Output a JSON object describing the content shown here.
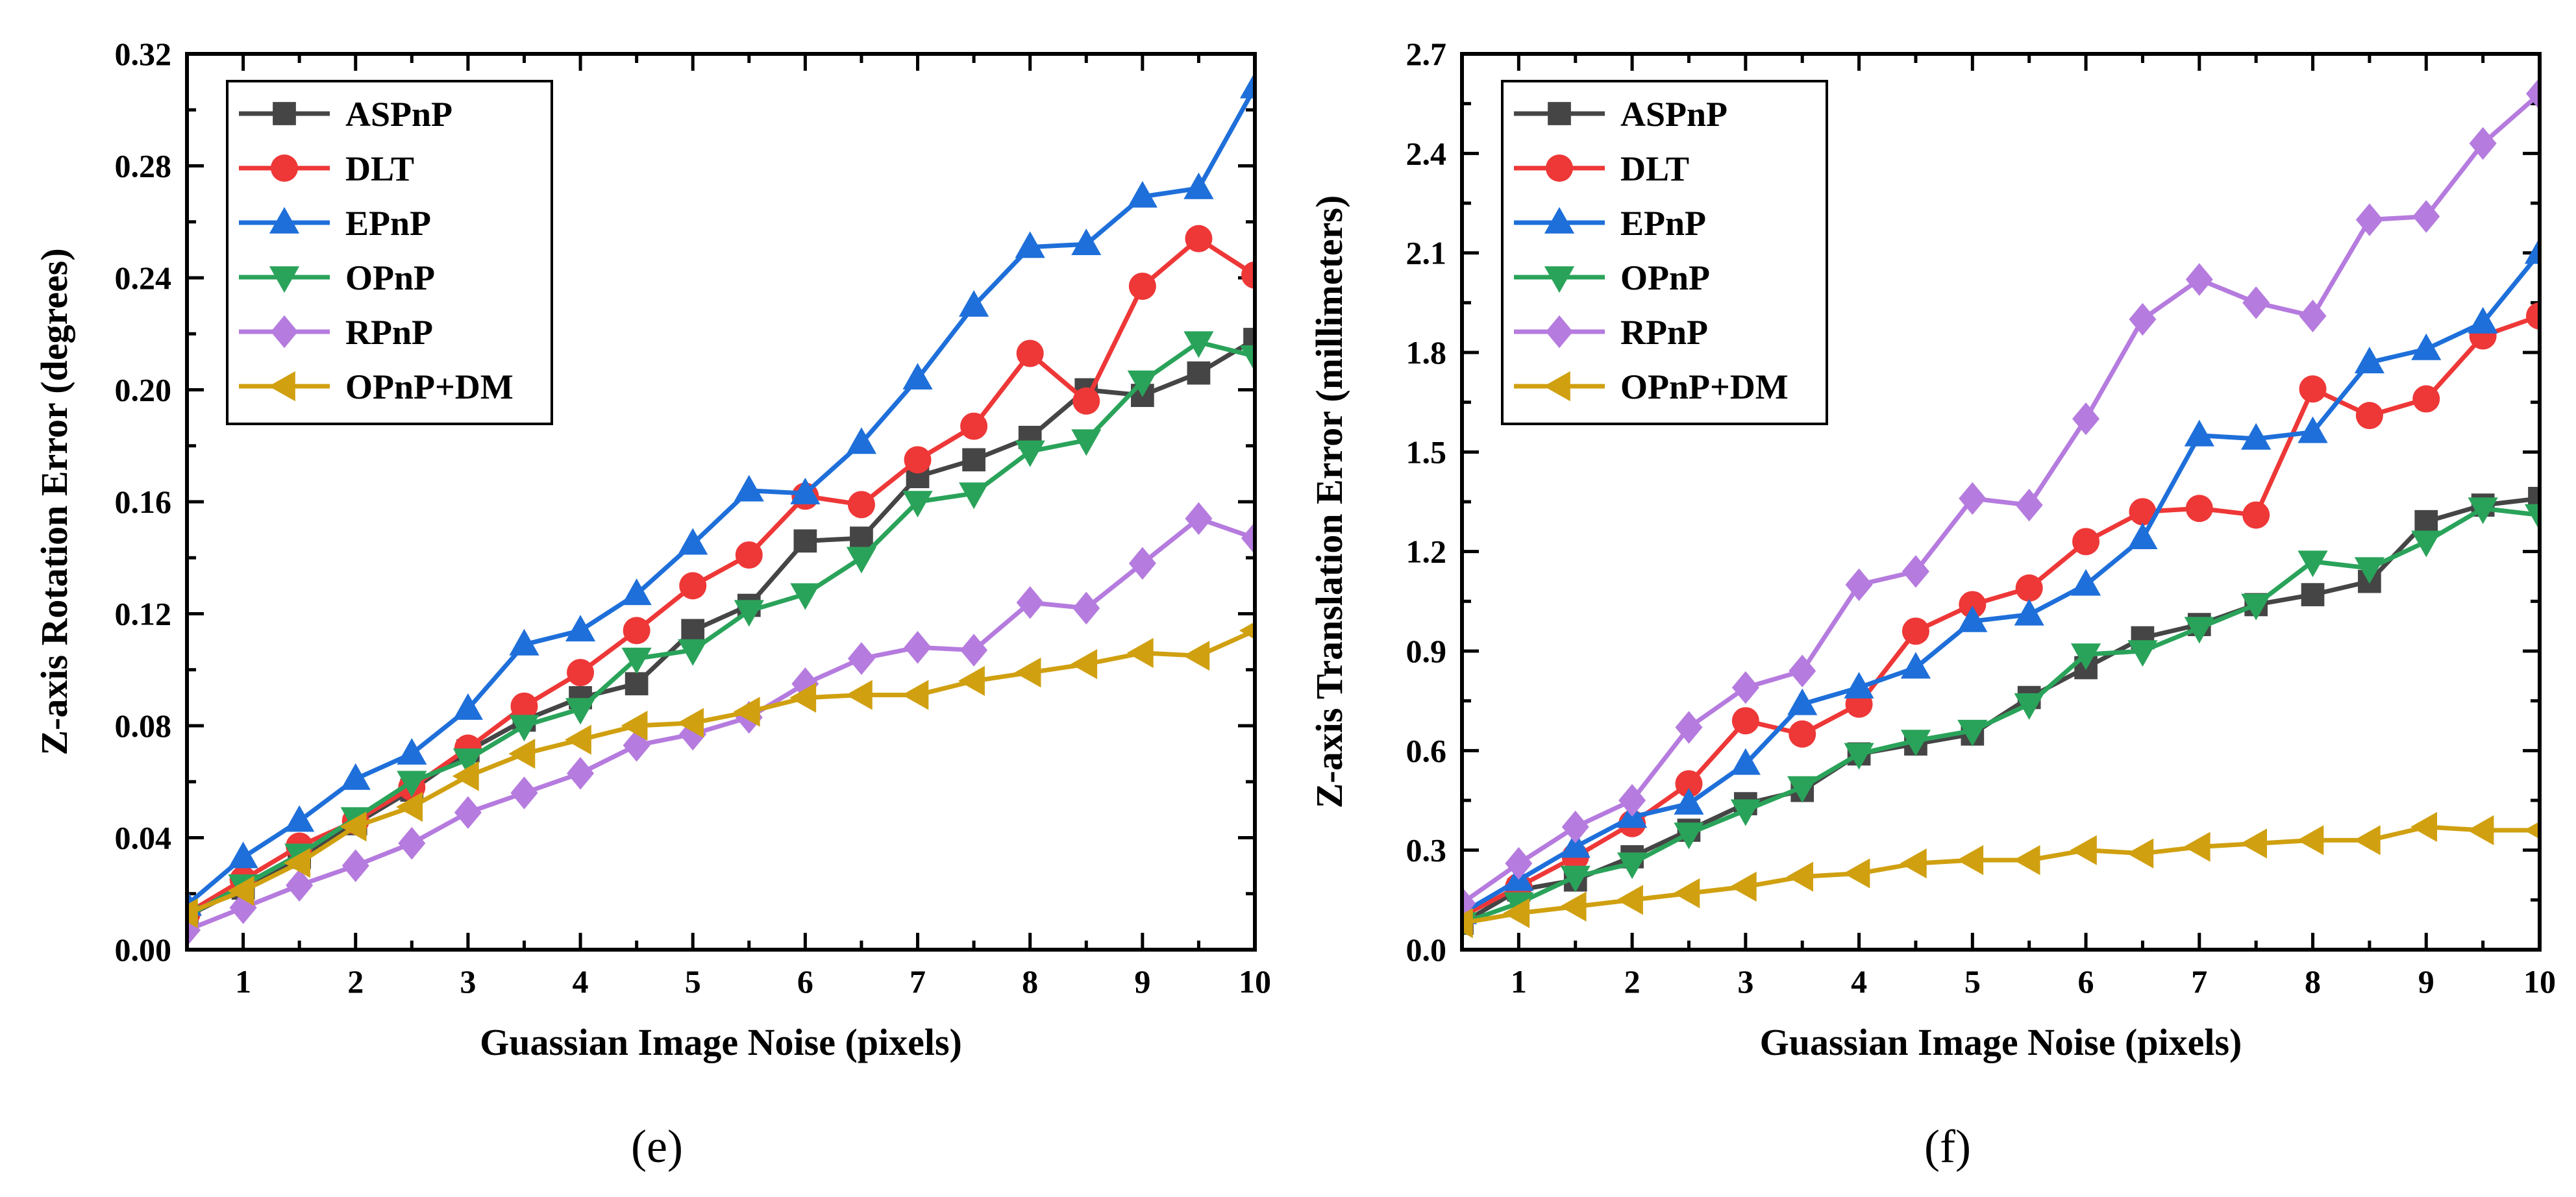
{
  "chart_data": [
    {
      "type": "line",
      "panel": "(e)",
      "xlabel": "Guassian Image Noise (pixels)",
      "ylabel": "Z-axis Rotation Error (degrees)",
      "xlim": [
        0.5,
        10
      ],
      "ylim": [
        0,
        0.32
      ],
      "xticks": [
        1,
        2,
        3,
        4,
        5,
        6,
        7,
        8,
        9,
        10
      ],
      "yticks": [
        "0.00",
        "0.04",
        "0.08",
        "0.12",
        "0.16",
        "0.20",
        "0.24",
        "0.28",
        "0.32"
      ],
      "legend_position": "top-left",
      "grid": false,
      "x": [
        0.5,
        1,
        1.5,
        2,
        2.5,
        3,
        3.5,
        4,
        4.5,
        5,
        5.5,
        6,
        6.5,
        7,
        7.5,
        8,
        8.5,
        9,
        9.5,
        10
      ],
      "series": [
        {
          "name": "ASPnP",
          "color": "#454545",
          "marker": "square",
          "values": [
            0.012,
            0.022,
            0.033,
            0.045,
            0.057,
            0.071,
            0.082,
            0.09,
            0.095,
            0.114,
            0.123,
            0.146,
            0.147,
            0.169,
            0.175,
            0.183,
            0.2,
            0.198,
            0.206,
            0.218
          ]
        },
        {
          "name": "DLT",
          "color": "#ee3737",
          "marker": "circle",
          "values": [
            0.013,
            0.025,
            0.037,
            0.046,
            0.058,
            0.072,
            0.087,
            0.099,
            0.114,
            0.13,
            0.141,
            0.162,
            0.159,
            0.175,
            0.187,
            0.213,
            0.196,
            0.237,
            0.254,
            0.241
          ]
        },
        {
          "name": "EPnP",
          "color": "#1e6fd9",
          "marker": "triangle-up",
          "values": [
            0.016,
            0.033,
            0.046,
            0.061,
            0.07,
            0.086,
            0.109,
            0.114,
            0.127,
            0.145,
            0.164,
            0.163,
            0.181,
            0.204,
            0.23,
            0.251,
            0.252,
            0.269,
            0.272,
            0.308
          ]
        },
        {
          "name": "OPnP",
          "color": "#2aa35a",
          "marker": "triangle-down",
          "values": [
            0.012,
            0.023,
            0.034,
            0.047,
            0.06,
            0.068,
            0.08,
            0.086,
            0.104,
            0.107,
            0.121,
            0.127,
            0.14,
            0.16,
            0.163,
            0.178,
            0.182,
            0.203,
            0.217,
            0.212
          ]
        },
        {
          "name": "RPnP",
          "color": "#b57bde",
          "marker": "diamond",
          "values": [
            0.007,
            0.015,
            0.023,
            0.03,
            0.038,
            0.049,
            0.056,
            0.063,
            0.073,
            0.077,
            0.083,
            0.095,
            0.104,
            0.108,
            0.107,
            0.124,
            0.122,
            0.138,
            0.154,
            0.147
          ]
        },
        {
          "name": "OPnP+DM",
          "color": "#d0a010",
          "marker": "triangle-left",
          "values": [
            0.013,
            0.021,
            0.031,
            0.044,
            0.051,
            0.062,
            0.07,
            0.075,
            0.08,
            0.081,
            0.085,
            0.09,
            0.091,
            0.091,
            0.096,
            0.099,
            0.102,
            0.106,
            0.105,
            0.114
          ]
        }
      ]
    },
    {
      "type": "line",
      "panel": "(f)",
      "xlabel": "Guassian Image Noise (pixels)",
      "ylabel": "Z-axis Translation Error (millimeters)",
      "xlim": [
        0.5,
        10
      ],
      "ylim": [
        0,
        2.7
      ],
      "xticks": [
        1,
        2,
        3,
        4,
        5,
        6,
        7,
        8,
        9,
        10
      ],
      "yticks": [
        "0.0",
        "0.3",
        "0.6",
        "0.9",
        "1.2",
        "1.5",
        "1.8",
        "2.1",
        "2.4",
        "2.7"
      ],
      "legend_position": "top-left",
      "grid": false,
      "x": [
        0.5,
        1,
        1.5,
        2,
        2.5,
        3,
        3.5,
        4,
        4.5,
        5,
        5.5,
        6,
        6.5,
        7,
        7.5,
        8,
        8.5,
        9,
        9.5,
        10
      ],
      "series": [
        {
          "name": "ASPnP",
          "color": "#454545",
          "marker": "square",
          "values": [
            0.08,
            0.18,
            0.21,
            0.28,
            0.36,
            0.44,
            0.48,
            0.59,
            0.62,
            0.65,
            0.76,
            0.85,
            0.94,
            0.98,
            1.04,
            1.07,
            1.11,
            1.29,
            1.34,
            1.36
          ]
        },
        {
          "name": "DLT",
          "color": "#ee3737",
          "marker": "circle",
          "values": [
            0.1,
            0.19,
            0.28,
            0.38,
            0.5,
            0.69,
            0.65,
            0.74,
            0.96,
            1.04,
            1.09,
            1.23,
            1.32,
            1.33,
            1.31,
            1.69,
            1.61,
            1.66,
            1.85,
            1.91
          ]
        },
        {
          "name": "EPnP",
          "color": "#1e6fd9",
          "marker": "triangle-up",
          "values": [
            0.11,
            0.21,
            0.31,
            0.4,
            0.44,
            0.56,
            0.74,
            0.79,
            0.85,
            0.99,
            1.01,
            1.1,
            1.24,
            1.55,
            1.54,
            1.56,
            1.77,
            1.81,
            1.89,
            2.1
          ]
        },
        {
          "name": "OPnP",
          "color": "#2aa35a",
          "marker": "triangle-down",
          "values": [
            0.08,
            0.14,
            0.22,
            0.26,
            0.35,
            0.42,
            0.49,
            0.59,
            0.63,
            0.66,
            0.74,
            0.89,
            0.9,
            0.97,
            1.04,
            1.17,
            1.15,
            1.23,
            1.33,
            1.31
          ]
        },
        {
          "name": "RPnP",
          "color": "#b57bde",
          "marker": "diamond",
          "values": [
            0.14,
            0.26,
            0.37,
            0.45,
            0.67,
            0.79,
            0.84,
            1.1,
            1.14,
            1.36,
            1.34,
            1.6,
            1.9,
            2.02,
            1.95,
            1.91,
            2.2,
            2.21,
            2.43,
            2.58
          ]
        },
        {
          "name": "OPnP+DM",
          "color": "#d0a010",
          "marker": "triangle-left",
          "values": [
            0.08,
            0.11,
            0.13,
            0.15,
            0.17,
            0.19,
            0.22,
            0.23,
            0.26,
            0.27,
            0.27,
            0.3,
            0.29,
            0.31,
            0.32,
            0.33,
            0.33,
            0.37,
            0.36,
            0.36
          ]
        }
      ]
    }
  ]
}
